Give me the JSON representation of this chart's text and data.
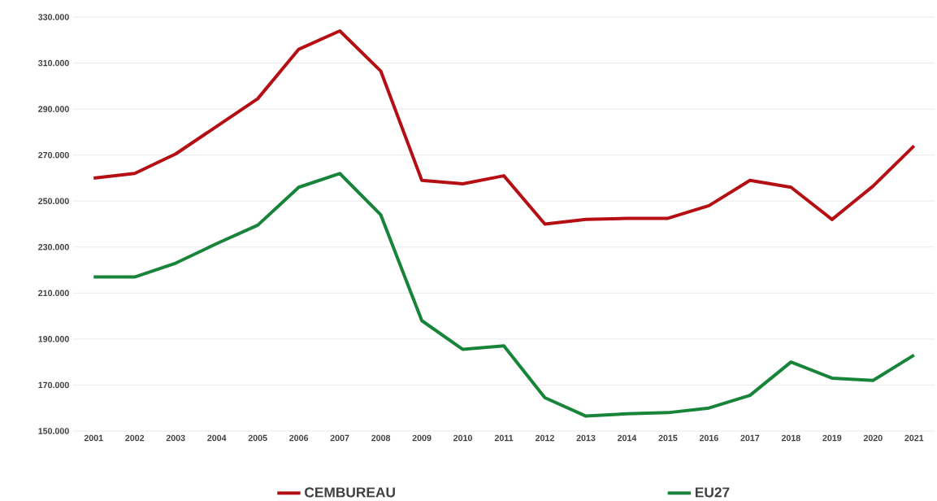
{
  "chart_data": {
    "type": "line",
    "categories": [
      "2001",
      "2002",
      "2003",
      "2004",
      "2005",
      "2006",
      "2007",
      "2008",
      "2009",
      "2010",
      "2011",
      "2012",
      "2013",
      "2014",
      "2015",
      "2016",
      "2017",
      "2018",
      "2019",
      "2020",
      "2021"
    ],
    "series": [
      {
        "name": "CEMBUREAU",
        "color": "#b50f14",
        "values": [
          260000,
          262000,
          270500,
          282500,
          294500,
          316000,
          324000,
          306500,
          259000,
          257500,
          261000,
          240000,
          242000,
          242500,
          242500,
          248000,
          259000,
          256000,
          242000,
          256500,
          274000
        ]
      },
      {
        "name": "EU27",
        "color": "#17843a",
        "values": [
          217000,
          217000,
          223000,
          231500,
          239500,
          256000,
          262000,
          244000,
          198000,
          185500,
          187000,
          164500,
          156500,
          157500,
          158000,
          160000,
          165500,
          180000,
          173000,
          172000,
          183000
        ]
      }
    ],
    "ylim": [
      150000,
      330000
    ],
    "yticks": [
      {
        "value": 150000,
        "label": "150.000"
      },
      {
        "value": 170000,
        "label": "170.000"
      },
      {
        "value": 190000,
        "label": "190.000"
      },
      {
        "value": 210000,
        "label": "210.000"
      },
      {
        "value": 230000,
        "label": "230.000"
      },
      {
        "value": 250000,
        "label": "250.000"
      },
      {
        "value": 270000,
        "label": "270.000"
      },
      {
        "value": 290000,
        "label": "290.000"
      },
      {
        "value": 310000,
        "label": "310.000"
      },
      {
        "value": 330000,
        "label": "330.000"
      }
    ],
    "grid": "y",
    "legend": "bottom",
    "marker": "none",
    "line_style": "solid"
  }
}
